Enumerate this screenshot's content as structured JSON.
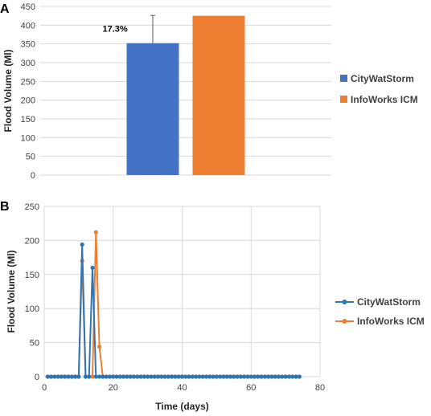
{
  "chart_data": [
    {
      "panel": "A",
      "type": "bar",
      "title": "",
      "ylabel": "Flood Volume (Ml)",
      "xlabel": "",
      "ylim": [
        0,
        450
      ],
      "yticks": [
        0,
        50,
        100,
        150,
        200,
        250,
        300,
        350,
        400,
        450
      ],
      "grid": true,
      "legend": "right",
      "series": [
        {
          "name": "CityWatStorm",
          "color": "#4472C4",
          "value": 352,
          "error_upper": 426
        },
        {
          "name": "InfoWorks ICM",
          "color": "#ED7D31",
          "value": 425
        }
      ],
      "annotation": "17.3%"
    },
    {
      "panel": "B",
      "type": "line",
      "title": "",
      "ylabel": "Flood Volume (Ml)",
      "xlabel": "Time (days)",
      "xlim": [
        0,
        80
      ],
      "ylim": [
        0,
        250
      ],
      "xticks": [
        0,
        20,
        40,
        60,
        80
      ],
      "yticks": [
        0,
        50,
        100,
        150,
        200,
        250
      ],
      "grid": true,
      "legend": "right",
      "series": [
        {
          "name": "CityWatStorm",
          "color": "#2E75B6",
          "points": [
            [
              1,
              0
            ],
            [
              2,
              0
            ],
            [
              3,
              0
            ],
            [
              4,
              0
            ],
            [
              5,
              0
            ],
            [
              6,
              0
            ],
            [
              7,
              0
            ],
            [
              8,
              0
            ],
            [
              9,
              0
            ],
            [
              10,
              0
            ],
            [
              11,
              194
            ],
            [
              12,
              0
            ],
            [
              13,
              0
            ],
            [
              14,
              160
            ],
            [
              15,
              0
            ],
            [
              16,
              0
            ],
            [
              17,
              0
            ],
            [
              18,
              0
            ],
            [
              19,
              0
            ],
            [
              20,
              0
            ],
            [
              21,
              0
            ],
            [
              22,
              0
            ],
            [
              23,
              0
            ],
            [
              24,
              0
            ],
            [
              25,
              0
            ],
            [
              26,
              0
            ],
            [
              27,
              0
            ],
            [
              28,
              0
            ],
            [
              29,
              0
            ],
            [
              30,
              0
            ],
            [
              31,
              0
            ],
            [
              32,
              0
            ],
            [
              33,
              0
            ],
            [
              34,
              0
            ],
            [
              35,
              0
            ],
            [
              36,
              0
            ],
            [
              37,
              0
            ],
            [
              38,
              0
            ],
            [
              39,
              0
            ],
            [
              40,
              0
            ],
            [
              41,
              0
            ],
            [
              42,
              0
            ],
            [
              43,
              0
            ],
            [
              44,
              0
            ],
            [
              45,
              0
            ],
            [
              46,
              0
            ],
            [
              47,
              0
            ],
            [
              48,
              0
            ],
            [
              49,
              0
            ],
            [
              50,
              0
            ],
            [
              51,
              0
            ],
            [
              52,
              0
            ],
            [
              53,
              0
            ],
            [
              54,
              0
            ],
            [
              55,
              0
            ],
            [
              56,
              0
            ],
            [
              57,
              0
            ],
            [
              58,
              0
            ],
            [
              59,
              0
            ],
            [
              60,
              0
            ],
            [
              61,
              0
            ],
            [
              62,
              0
            ],
            [
              63,
              0
            ],
            [
              64,
              0
            ],
            [
              65,
              0
            ],
            [
              66,
              0
            ],
            [
              67,
              0
            ],
            [
              68,
              0
            ],
            [
              69,
              0
            ],
            [
              70,
              0
            ],
            [
              71,
              0
            ],
            [
              72,
              0
            ],
            [
              73,
              0
            ],
            [
              74,
              0
            ]
          ]
        },
        {
          "name": "InfoWorks ICM",
          "color": "#ED7D31",
          "points": [
            [
              1,
              0
            ],
            [
              2,
              0
            ],
            [
              3,
              0
            ],
            [
              4,
              0
            ],
            [
              5,
              0
            ],
            [
              6,
              0
            ],
            [
              7,
              0
            ],
            [
              8,
              0
            ],
            [
              9,
              0
            ],
            [
              10,
              0
            ],
            [
              11,
              170
            ],
            [
              12,
              0
            ],
            [
              13,
              0
            ],
            [
              14,
              0
            ],
            [
              15,
              212
            ],
            [
              16,
              44
            ],
            [
              17,
              0
            ],
            [
              18,
              0
            ],
            [
              19,
              0
            ],
            [
              20,
              0
            ],
            [
              21,
              0
            ],
            [
              22,
              0
            ],
            [
              23,
              0
            ],
            [
              24,
              0
            ],
            [
              25,
              0
            ],
            [
              26,
              0
            ],
            [
              27,
              0
            ],
            [
              28,
              0
            ],
            [
              29,
              0
            ],
            [
              30,
              0
            ],
            [
              31,
              0
            ],
            [
              32,
              0
            ],
            [
              33,
              0
            ],
            [
              34,
              0
            ],
            [
              35,
              0
            ],
            [
              36,
              0
            ],
            [
              37,
              0
            ],
            [
              38,
              0
            ],
            [
              39,
              0
            ],
            [
              40,
              0
            ],
            [
              41,
              0
            ],
            [
              42,
              0
            ],
            [
              43,
              0
            ],
            [
              44,
              0
            ],
            [
              45,
              0
            ],
            [
              46,
              0
            ],
            [
              47,
              0
            ],
            [
              48,
              0
            ],
            [
              49,
              0
            ],
            [
              50,
              0
            ],
            [
              51,
              0
            ],
            [
              52,
              0
            ],
            [
              53,
              0
            ],
            [
              54,
              0
            ],
            [
              55,
              0
            ],
            [
              56,
              0
            ],
            [
              57,
              0
            ],
            [
              58,
              0
            ],
            [
              59,
              0
            ],
            [
              60,
              0
            ],
            [
              61,
              0
            ],
            [
              62,
              0
            ],
            [
              63,
              0
            ],
            [
              64,
              0
            ],
            [
              65,
              0
            ],
            [
              66,
              0
            ],
            [
              67,
              0
            ],
            [
              68,
              0
            ],
            [
              69,
              0
            ],
            [
              70,
              0
            ],
            [
              71,
              0
            ],
            [
              72,
              0
            ],
            [
              73,
              0
            ],
            [
              74,
              0
            ]
          ]
        }
      ]
    }
  ]
}
